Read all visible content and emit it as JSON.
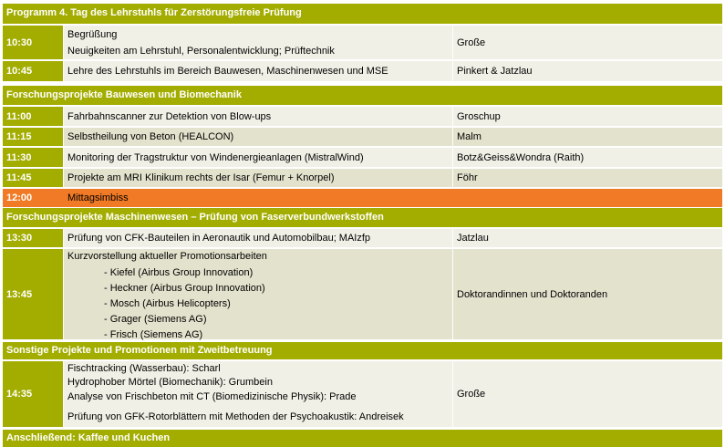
{
  "title": "Programm 4. Tag des Lehrstuhls für Zerstörungsfreie Prüfung",
  "rows": [
    {
      "time": "10:30",
      "lines": [
        "Begrüßung",
        "",
        "Neuigkeiten am Lehrstuhl, Personalentwicklung; Prüftechnik"
      ],
      "who": "Große"
    },
    {
      "time": "10:45",
      "lines": [
        "Lehre des Lehrstuhls im Bereich Bauwesen, Maschinenwesen und MSE"
      ],
      "who": "Pinkert & Jatzlau"
    }
  ],
  "section2": "Forschungsprojekte Bauwesen und Biomechanik",
  "rows2": [
    {
      "time": "11:00",
      "lines": [
        "Fahrbahnscanner zur Detektion von Blow-ups"
      ],
      "who": "Groschup"
    },
    {
      "time": "11:15",
      "lines": [
        "Selbstheilung von Beton (HEALCON)"
      ],
      "who": "Malm"
    },
    {
      "time": "11:30",
      "lines": [
        "Monitoring der Tragstruktur von Windenergieanlagen (MistralWind)"
      ],
      "who": "Botz&Geiss&Wondra (Raith)"
    },
    {
      "time": "11:45",
      "lines": [
        "Projekte am MRI Klinikum rechts der Isar (Femur + Knorpel)"
      ],
      "who": "Föhr"
    }
  ],
  "lunch": {
    "time": "12:00",
    "label": "Mittagsimbiss"
  },
  "section3": "Forschungsprojekte Maschinenwesen – Prüfung von Faserverbundwerkstoffen",
  "rows3": [
    {
      "time": "13:30",
      "lines": [
        "Prüfung von CFK-Bauteilen in Aeronautik und Automobilbau; MAIzfp"
      ],
      "who": "Jatzlau"
    },
    {
      "time": "13:45",
      "lines": [
        "Kurzvorstellung aktueller Promotionsarbeiten"
      ],
      "sub": [
        "- Kiefel (Airbus Group Innovation)",
        "- Heckner (Airbus Group Innovation)",
        "- Mosch (Airbus Helicopters)",
        "- Grager (Siemens AG)",
        "- Frisch (Siemens AG)"
      ],
      "who": "Doktorandinnen und Doktoranden"
    }
  ],
  "section4": "Sonstige Projekte und Promotionen mit Zweitbetreuung",
  "rows4": [
    {
      "time": "14:35",
      "lines": [
        "Fischtracking (Wasserbau): Scharl",
        "Hydrophober Mörtel (Biomechanik): Grumbein",
        "Analyse von Frischbeton mit CT (Biomedizinische Physik): Prade",
        "",
        "Prüfung von GFK-Rotorblättern mit Methoden der Psychoakustik: Andreisek"
      ],
      "who": "Große"
    }
  ],
  "footer": "Anschließend: Kaffee und Kuchen"
}
